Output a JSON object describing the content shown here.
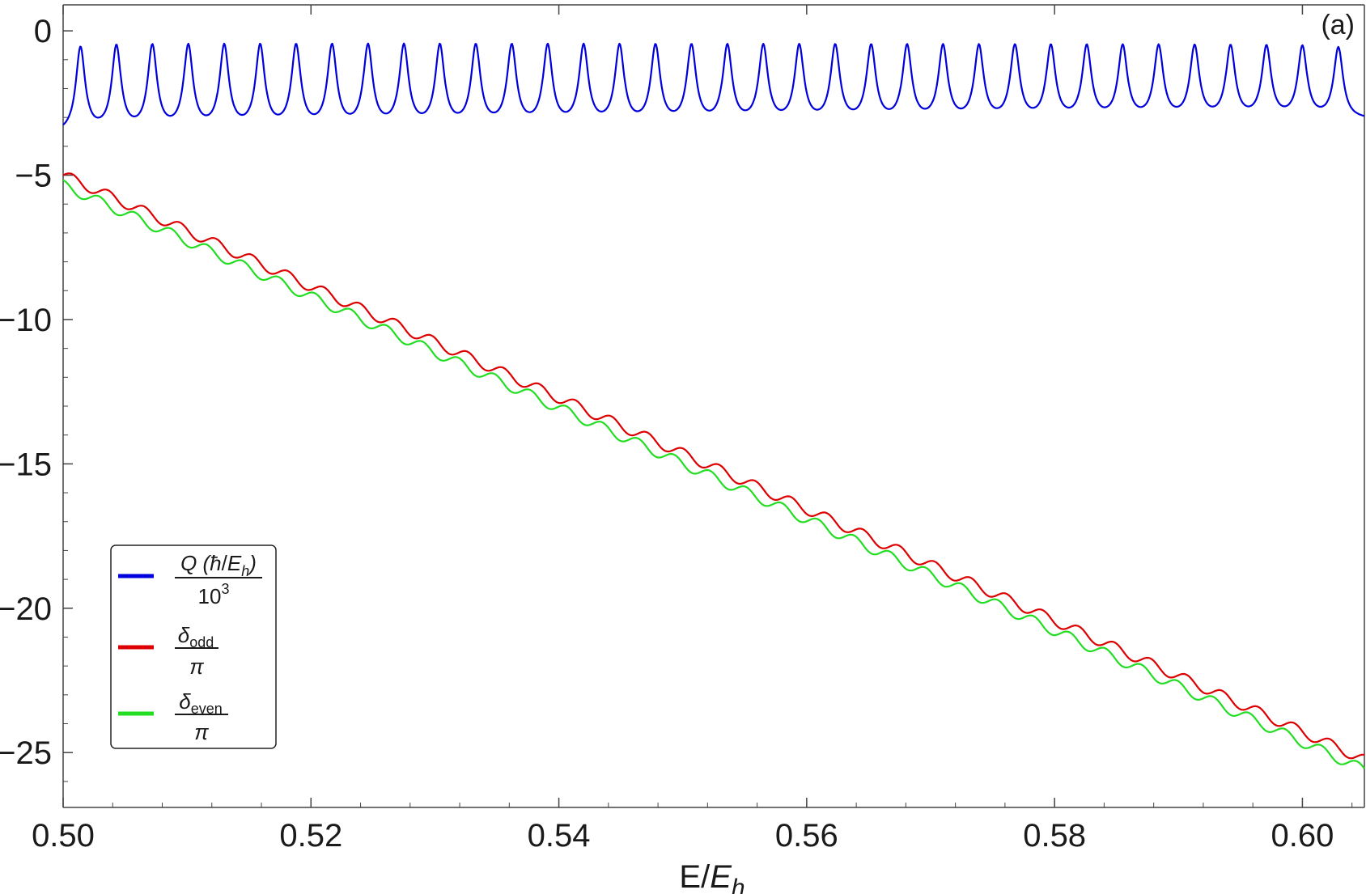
{
  "chart_data": {
    "type": "line",
    "panel_label": "(a)",
    "xlabel": {
      "base": "E/",
      "var": "E",
      "sub": "h"
    },
    "xlim": [
      0.5,
      0.605
    ],
    "ylim": [
      -26.9,
      0.9
    ],
    "x_ticks": [
      0.5,
      0.52,
      0.54,
      0.56,
      0.58,
      0.6
    ],
    "x_tick_labels": [
      "0.50",
      "0.52",
      "0.54",
      "0.56",
      "0.58",
      "0.60"
    ],
    "y_ticks": [
      0,
      -5,
      -10,
      -15,
      -20,
      -25
    ],
    "y_tick_labels": [
      "0",
      "−5",
      "−10",
      "−15",
      "−20",
      "−25"
    ],
    "grid": false,
    "legend_position": "bottom-left",
    "series": [
      {
        "name": "Q (ħ/E_h) / 10^3",
        "color": "#0000dd",
        "kind": "peaks",
        "baseline_start": -3.6,
        "baseline_end": -3.1,
        "peak_value": -0.65,
        "peaks_x": [
          0.5014,
          0.5043,
          0.5072,
          0.5101,
          0.513,
          0.5159,
          0.5188,
          0.5217,
          0.5246,
          0.5275,
          0.5304,
          0.5333,
          0.5362,
          0.5391,
          0.542,
          0.5449,
          0.5478,
          0.5507,
          0.5536,
          0.5565,
          0.5594,
          0.5623,
          0.5652,
          0.5681,
          0.571,
          0.5739,
          0.5768,
          0.5797,
          0.5826,
          0.5855,
          0.5884,
          0.5913,
          0.5942,
          0.5971,
          0.6,
          0.6029
        ],
        "x_start": 0.5,
        "x_end": 0.605
      },
      {
        "name": "δ_odd / π",
        "color": "#dd0000",
        "kind": "staircase",
        "y_start": -5.0,
        "y_end": -25.25,
        "ripple_amplitude": 0.18,
        "ripple_period": 0.0029,
        "phase": 0.0,
        "x_start": 0.5,
        "x_end": 0.605
      },
      {
        "name": "δ_even / π",
        "color": "#22dd22",
        "kind": "staircase",
        "y_start": -5.35,
        "y_end": -25.6,
        "ripple_amplitude": 0.18,
        "ripple_period": 0.0029,
        "phase": 1.5708,
        "x_start": 0.5,
        "x_end": 0.605
      }
    ],
    "legend": {
      "q": {
        "num_main": "Q (",
        "num_hbar": "ħ",
        "num_slash": "/",
        "num_var": "E",
        "num_sub": "h",
        "num_close": ")",
        "den_main": "10",
        "den_sup": "3"
      },
      "odd": {
        "num_var": "δ",
        "num_sub": "odd",
        "den": "π"
      },
      "even": {
        "num_var": "δ",
        "num_sub": "even",
        "den": "π"
      }
    }
  }
}
